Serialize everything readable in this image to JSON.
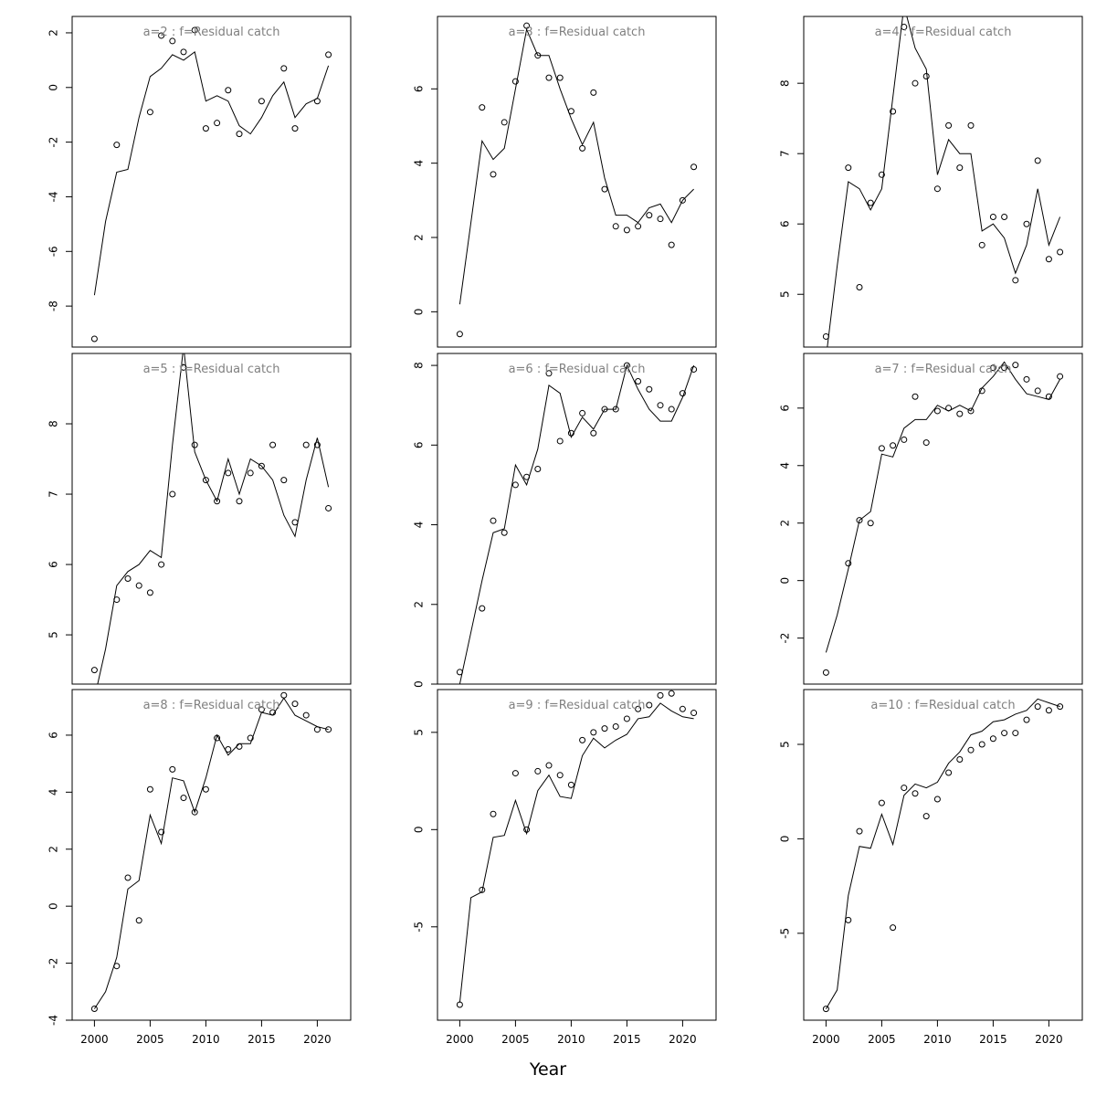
{
  "chart_data": {
    "type": "scatter",
    "xlabel": "Year",
    "x_ticks": [
      2000,
      2005,
      2010,
      2015,
      2020
    ],
    "x_range": [
      1998,
      2023
    ],
    "years": [
      2000,
      2001,
      2002,
      2003,
      2004,
      2005,
      2006,
      2007,
      2008,
      2009,
      2010,
      2011,
      2012,
      2013,
      2014,
      2015,
      2016,
      2017,
      2018,
      2019,
      2020,
      2021
    ],
    "panels": [
      {
        "title": "a=2  :  f=Residual catch",
        "ylim": [
          -9.5,
          2.6
        ],
        "yticks": [
          -8,
          -6,
          -4,
          -2,
          0,
          2
        ],
        "observed": [
          -9.2,
          null,
          -2.1,
          null,
          null,
          -0.9,
          1.9,
          1.7,
          1.3,
          2.1,
          -1.5,
          -1.3,
          -0.1,
          -1.7,
          null,
          -0.5,
          null,
          0.7,
          -1.5,
          null,
          -0.5,
          1.2
        ],
        "fitted": [
          -7.6,
          -4.9,
          -3.1,
          -3.0,
          -1.1,
          0.4,
          0.7,
          1.2,
          1.0,
          1.3,
          -0.5,
          -0.3,
          -0.5,
          -1.4,
          -1.7,
          -1.1,
          -0.3,
          0.2,
          -1.1,
          -0.6,
          -0.4,
          0.8
        ]
      },
      {
        "title": "a=5  :  f=Residual catch",
        "ylim": [
          4.3,
          9.0
        ],
        "yticks": [
          5,
          6,
          7,
          8
        ],
        "observed": [
          4.5,
          null,
          5.5,
          5.8,
          5.7,
          5.6,
          6.0,
          7.0,
          8.8,
          7.7,
          7.2,
          6.9,
          7.3,
          6.9,
          7.3,
          7.4,
          7.7,
          7.2,
          6.6,
          7.7,
          7.7,
          6.8
        ],
        "fitted": [
          4.1,
          4.8,
          5.7,
          5.9,
          6.0,
          6.2,
          6.1,
          7.7,
          9.1,
          7.6,
          7.2,
          6.9,
          7.5,
          7.0,
          7.5,
          7.4,
          7.2,
          6.7,
          6.4,
          7.2,
          7.8,
          7.1
        ]
      },
      {
        "title": "a=8  :  f=Residual catch",
        "ylim": [
          -4.0,
          7.6
        ],
        "yticks": [
          -4,
          -2,
          0,
          2,
          4,
          6
        ],
        "observed": [
          -3.6,
          null,
          -2.1,
          1.0,
          -0.5,
          4.1,
          2.6,
          4.8,
          3.8,
          3.3,
          4.1,
          5.9,
          5.5,
          5.6,
          5.9,
          6.9,
          6.8,
          7.4,
          7.1,
          6.7,
          6.2,
          6.2
        ],
        "fitted": [
          -3.6,
          -3.0,
          -1.8,
          0.6,
          0.9,
          3.2,
          2.2,
          4.5,
          4.4,
          3.3,
          4.5,
          6.0,
          5.3,
          5.7,
          5.7,
          6.8,
          6.7,
          7.3,
          6.7,
          6.5,
          6.3,
          6.2
        ]
      },
      {
        "title": "a=3  :  f=Residual catch",
        "ylim": [
          -0.95,
          7.95
        ],
        "yticks": [
          0,
          2,
          4,
          6
        ],
        "observed": [
          -0.6,
          null,
          5.5,
          3.7,
          5.1,
          6.2,
          7.7,
          6.9,
          6.3,
          6.3,
          5.4,
          4.4,
          5.9,
          3.3,
          2.3,
          2.2,
          2.3,
          2.6,
          2.5,
          1.8,
          3.0,
          3.9
        ],
        "fitted": [
          0.2,
          2.4,
          4.6,
          4.1,
          4.4,
          6.0,
          7.6,
          6.9,
          6.9,
          6.0,
          5.2,
          4.5,
          5.1,
          3.6,
          2.6,
          2.6,
          2.4,
          2.8,
          2.9,
          2.4,
          3.0,
          3.3
        ]
      },
      {
        "title": "a=6  :  f=Residual catch",
        "ylim": [
          0,
          8.3
        ],
        "yticks": [
          0,
          2,
          4,
          6,
          8
        ],
        "observed": [
          0.3,
          null,
          1.9,
          4.1,
          3.8,
          5.0,
          5.2,
          5.4,
          7.8,
          6.1,
          6.3,
          6.8,
          6.3,
          6.9,
          6.9,
          8.0,
          7.6,
          7.4,
          7.0,
          6.9,
          7.3,
          7.9
        ],
        "fitted": [
          0.0,
          1.3,
          2.6,
          3.8,
          3.9,
          5.5,
          5.0,
          5.9,
          7.5,
          7.3,
          6.2,
          6.7,
          6.4,
          6.9,
          6.9,
          8.0,
          7.4,
          6.9,
          6.6,
          6.6,
          7.2,
          8.0
        ]
      },
      {
        "title": "a=9  :  f=Residual catch",
        "ylim": [
          -9.8,
          7.2
        ],
        "yticks": [
          -5,
          0,
          5
        ],
        "observed": [
          -9.0,
          null,
          -3.1,
          0.8,
          null,
          2.9,
          0.0,
          3.0,
          3.3,
          2.8,
          2.3,
          4.6,
          5.0,
          5.2,
          5.3,
          5.7,
          6.2,
          6.4,
          6.9,
          7.0,
          6.2,
          6.0
        ],
        "fitted": [
          -8.9,
          -3.5,
          -3.2,
          -0.4,
          -0.3,
          1.5,
          -0.2,
          2.0,
          2.8,
          1.7,
          1.6,
          3.8,
          4.7,
          4.2,
          4.6,
          4.9,
          5.7,
          5.8,
          6.5,
          6.1,
          5.8,
          5.7
        ]
      },
      {
        "title": "a=4  :  f=Residual catch",
        "ylim": [
          4.25,
          8.95
        ],
        "yticks": [
          5,
          6,
          7,
          8
        ],
        "observed": [
          4.4,
          null,
          6.8,
          5.1,
          6.3,
          6.7,
          7.6,
          8.8,
          8.0,
          8.1,
          6.5,
          7.4,
          6.8,
          7.4,
          5.7,
          6.1,
          6.1,
          5.2,
          6.0,
          6.9,
          5.5,
          5.6
        ],
        "fitted": [
          4.1,
          5.4,
          6.6,
          6.5,
          6.2,
          6.5,
          7.8,
          9.1,
          8.5,
          8.2,
          6.7,
          7.2,
          7.0,
          7.0,
          5.9,
          6.0,
          5.8,
          5.3,
          5.7,
          6.5,
          5.7,
          6.1
        ]
      },
      {
        "title": "a=7  :  f=Residual catch",
        "ylim": [
          -3.6,
          7.9
        ],
        "yticks": [
          -2,
          0,
          2,
          4,
          6
        ],
        "observed": [
          -3.2,
          null,
          0.6,
          2.1,
          2.0,
          4.6,
          4.7,
          4.9,
          6.4,
          4.8,
          5.9,
          6.0,
          5.8,
          5.9,
          6.6,
          7.4,
          7.4,
          7.5,
          7.0,
          6.6,
          6.4,
          7.1
        ],
        "fitted": [
          -2.5,
          -1.2,
          0.4,
          2.1,
          2.4,
          4.4,
          4.3,
          5.3,
          5.6,
          5.6,
          6.1,
          5.9,
          6.1,
          5.9,
          6.7,
          7.1,
          7.6,
          7.0,
          6.5,
          6.4,
          6.3,
          7.0
        ]
      },
      {
        "title": "a=10  :  f=Residual catch",
        "ylim": [
          -9.6,
          7.9
        ],
        "yticks": [
          -5,
          0,
          5
        ],
        "observed": [
          -9.0,
          null,
          -4.3,
          0.4,
          null,
          1.9,
          -4.7,
          2.7,
          2.4,
          1.2,
          2.1,
          3.5,
          4.2,
          4.7,
          5.0,
          5.3,
          5.6,
          5.6,
          6.3,
          7.0,
          6.8,
          7.0
        ],
        "fitted": [
          -9.0,
          -8.0,
          -3.0,
          -0.4,
          -0.5,
          1.3,
          -0.3,
          2.3,
          2.9,
          2.7,
          3.0,
          4.0,
          4.6,
          5.5,
          5.7,
          6.2,
          6.3,
          6.6,
          6.8,
          7.4,
          7.2,
          7.0
        ]
      }
    ]
  }
}
